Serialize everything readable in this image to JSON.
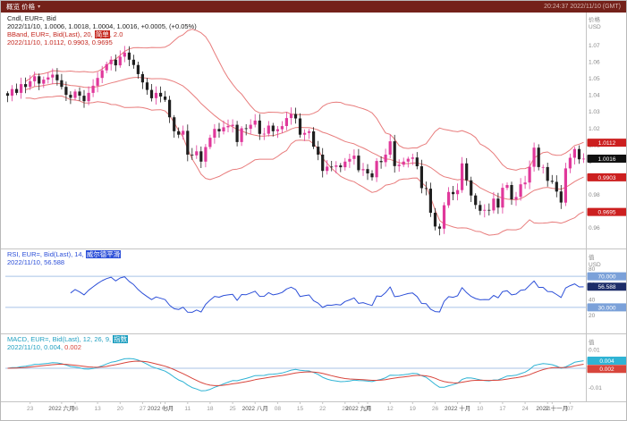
{
  "topbar": {
    "left": "概览 价格",
    "right": "20:24:37 2022/11/10 (GMT)"
  },
  "main_legend": {
    "line1": "Cndl, EUR=, Bid",
    "line2": "2022/11/10, 1.0006, 1.0018, 1.0004, 1.0016, +0.0005, (+0.05%)",
    "line3_prefix": "BBand, EUR=, Bid(Last), 20, ",
    "line3_hl": "简单",
    "line3_suffix": ", 2.0",
    "line4": "2022/11/10, 1.0112, 0.9903, 0.9695"
  },
  "rsi_legend": {
    "line1_prefix": "RSI, EUR=, Bid(Last), 14, ",
    "line1_hl": "威尔德平滑",
    "line2": "2022/11/10, 56.588"
  },
  "macd_legend": {
    "line1_prefix": "MACD, EUR=, Bid(Last), 12, 26, 9, ",
    "line1_hl": "指数",
    "line2_date": "2022/11/10, ",
    "line2_macd": "0.004",
    "line2_sep": ", ",
    "line2_signal": "0.002"
  },
  "colors": {
    "up": "#e0389b",
    "down": "#1f1f1f",
    "band": "#e87c7c",
    "rsi": "#2c4fd8",
    "rsi_ref": "#a9c3e6",
    "macd": "#2fb3d4",
    "macd_signal": "#d8453c",
    "axis_text": "#8a8a8a",
    "tick_day": "#9a9a9a",
    "tick_month": "#555555",
    "separator": "#c4c4c4",
    "zero_line": "#a9c3e6"
  },
  "chart_data": {
    "type": "candlestick",
    "instrument": "EUR=",
    "interval": "daily",
    "first_open": 1.041,
    "candles_close": [
      1.0395,
      1.0435,
      1.0412,
      1.0465,
      1.0448,
      1.0482,
      1.0512,
      1.0468,
      1.0492,
      1.0505,
      1.0522,
      1.0488,
      1.0448,
      1.04,
      1.0382,
      1.042,
      1.0395,
      1.0362,
      1.0412,
      1.0455,
      1.0502,
      1.0548,
      1.0585,
      1.0612,
      1.0578,
      1.063,
      1.0655,
      1.0612,
      1.058,
      1.0525,
      1.0475,
      1.043,
      1.038,
      1.0412,
      1.039,
      1.037,
      1.0265,
      1.0181,
      1.016,
      1.0183,
      1.004,
      1.0036,
      1.006,
      0.9998,
      1.0086,
      1.0142,
      1.0195,
      1.018,
      1.0205,
      1.0213,
      1.022,
      1.0116,
      1.0199,
      1.0196,
      1.022,
      1.0245,
      1.0165,
      1.0166,
      1.0215,
      1.0181,
      1.0193,
      1.0212,
      1.026,
      1.0285,
      1.0258,
      1.016,
      1.0171,
      1.018,
      1.0088,
      1.004,
      0.9942,
      0.9968,
      0.9967,
      0.9975,
      0.9964,
      0.9998,
      1.0014,
      1.0034,
      0.9946,
      0.9953,
      0.9927,
      0.9904,
      1.0002,
      0.9995,
      1.004,
      1.012,
      0.9971,
      0.9979,
      0.9998,
      1.0015,
      1.0023,
      0.997,
      0.9838,
      0.9835,
      0.969,
      0.9607,
      0.9594,
      0.9735,
      0.9815,
      0.9802,
      0.9826,
      0.9987,
      0.9885,
      0.9794,
      0.9737,
      0.9702,
      0.9707,
      0.9704,
      0.9775,
      0.9721,
      0.984,
      0.9857,
      0.9771,
      0.9785,
      0.9861,
      0.9872,
      0.9967,
      1.0082,
      0.9965,
      0.9965,
      0.9882,
      0.9876,
      0.9818,
      0.9751,
      0.9957,
      1.0021,
      1.0074,
      1.0012,
      1.0016
    ],
    "indicators": {
      "bband": {
        "period": 20,
        "mult": 2
      },
      "rsi": {
        "period": 14
      },
      "macd": {
        "fast": 12,
        "slow": 26,
        "signal": 9
      }
    },
    "main_axis": {
      "min": 0.948,
      "max": 1.088,
      "ticks": [
        1.07,
        1.06,
        1.05,
        1.04,
        1.03,
        1.02,
        1.01,
        1,
        0.99,
        0.98,
        0.97,
        0.96
      ],
      "title1": "价格",
      "title2": "USD"
    },
    "rsi_axis": {
      "min": 0,
      "max": 100,
      "ticks": [
        80,
        60,
        40,
        20
      ],
      "ref": [
        70,
        30
      ],
      "title1": "值",
      "title2": "USD"
    },
    "macd_axis": {
      "min": -0.016,
      "max": 0.016,
      "ticks": [
        0.01,
        0,
        -0.01
      ],
      "title1": "值"
    },
    "main_badges": [
      {
        "v": 1.0112,
        "label": "1.0112",
        "color": "#cc1f1f"
      },
      {
        "v": 1.0016,
        "label": "1.0016",
        "color": "#111111"
      },
      {
        "v": 0.9903,
        "label": "0.9903",
        "color": "#cc1f1f"
      },
      {
        "v": 0.9695,
        "label": "0.9695",
        "color": "#cc1f1f"
      }
    ],
    "rsi_badges": [
      {
        "v": 70,
        "label": "70.000",
        "color": "#7ba1d9"
      },
      {
        "v": 56.588,
        "label": "56.588",
        "color": "#1d2d69"
      },
      {
        "v": 30,
        "label": "30.000",
        "color": "#7ba1d9"
      }
    ],
    "macd_badges": [
      {
        "v": 0.004,
        "label": "0.004",
        "color": "#2fb3d4"
      },
      {
        "v": 0.002,
        "label": "0.002",
        "color": "#d8453c"
      }
    ],
    "x_months": [
      {
        "i": 12,
        "label": "2022 六月"
      },
      {
        "i": 34,
        "label": "2022 七月"
      },
      {
        "i": 55,
        "label": "2022 八月"
      },
      {
        "i": 78,
        "label": "2022 九月"
      },
      {
        "i": 100,
        "label": "2022 十月"
      },
      {
        "i": 121,
        "label": "2022 十一月"
      }
    ],
    "x_days": [
      {
        "i": 5,
        "label": "23"
      },
      {
        "i": 15,
        "label": "06"
      },
      {
        "i": 20,
        "label": "13"
      },
      {
        "i": 25,
        "label": "20"
      },
      {
        "i": 30,
        "label": "27"
      },
      {
        "i": 35,
        "label": "04"
      },
      {
        "i": 40,
        "label": "11"
      },
      {
        "i": 45,
        "label": "18"
      },
      {
        "i": 50,
        "label": "25"
      },
      {
        "i": 60,
        "label": "08"
      },
      {
        "i": 65,
        "label": "15"
      },
      {
        "i": 70,
        "label": "22"
      },
      {
        "i": 75,
        "label": "29"
      },
      {
        "i": 80,
        "label": "05"
      },
      {
        "i": 85,
        "label": "12"
      },
      {
        "i": 90,
        "label": "19"
      },
      {
        "i": 95,
        "label": "26"
      },
      {
        "i": 105,
        "label": "10"
      },
      {
        "i": 110,
        "label": "17"
      },
      {
        "i": 115,
        "label": "24"
      },
      {
        "i": 120,
        "label": "31"
      },
      {
        "i": 125,
        "label": "07"
      }
    ]
  }
}
